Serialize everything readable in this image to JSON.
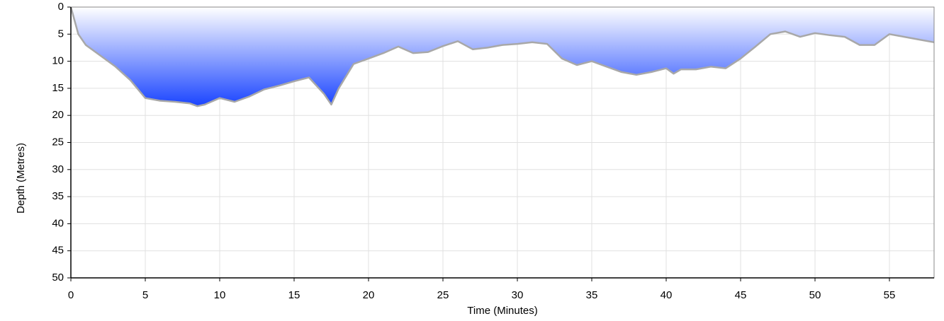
{
  "chart_data": {
    "type": "area",
    "x_label": "Time (Minutes)",
    "y_label": "Depth (Metres)",
    "x": [
      0,
      0.5,
      1,
      2,
      3,
      4,
      5,
      6,
      7,
      8,
      8.5,
      9,
      10,
      11,
      12,
      13,
      14,
      15,
      16,
      17,
      17.5,
      18,
      19,
      20,
      21,
      22,
      23,
      24,
      25,
      26,
      27,
      28,
      29,
      30,
      31,
      32,
      33,
      34,
      35,
      36,
      37,
      38,
      39,
      40,
      40.5,
      41,
      42,
      43,
      44,
      45,
      46,
      47,
      48,
      49,
      50,
      51,
      52,
      53,
      54,
      55,
      56,
      57,
      58
    ],
    "values": [
      0,
      5,
      7,
      9,
      11,
      13.5,
      16.8,
      17.3,
      17.5,
      17.8,
      18.3,
      18,
      16.8,
      17.5,
      16.5,
      15.2,
      14.5,
      13.7,
      13,
      16,
      18,
      15,
      10.5,
      9.5,
      8.5,
      7.3,
      8.5,
      8.3,
      7.2,
      6.3,
      7.8,
      7.5,
      7,
      6.8,
      6.5,
      6.8,
      9.5,
      10.7,
      10,
      11,
      12,
      12.5,
      12,
      11.3,
      12.3,
      11.5,
      11.5,
      11,
      11.3,
      9.5,
      7.3,
      5,
      4.5,
      5.5,
      4.8,
      5.2,
      5.5,
      7,
      7,
      5,
      5.5,
      6,
      6.5
    ],
    "color": "#1a44ff",
    "line_color": "#a8a8a8",
    "xlim": [
      0,
      58
    ],
    "xticks": [
      0,
      5,
      10,
      15,
      20,
      25,
      30,
      35,
      40,
      45,
      50,
      55
    ],
    "ylim": [
      0,
      50
    ],
    "yticks": [
      0,
      5,
      10,
      15,
      20,
      25,
      30,
      35,
      40,
      45,
      50
    ],
    "y_inverted": true,
    "grid": true
  }
}
